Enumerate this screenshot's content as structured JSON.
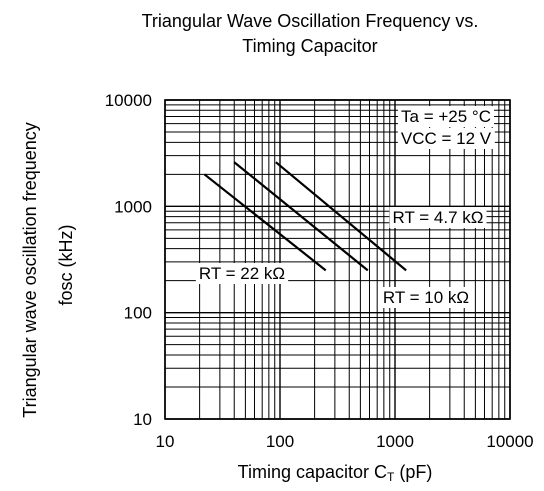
{
  "chart_data": {
    "type": "line",
    "title_line1": "Triangular Wave Oscillation Frequency vs.",
    "title_line2": "Timing Capacitor",
    "xlabel_main": "Timing capacitor C",
    "xlabel_sub": "T",
    "xlabel_unit": " (pF)",
    "ylabel_line1": "Triangular wave oscillation frequency",
    "ylabel_line2": "fosc (kHz)",
    "x_scale": "log",
    "y_scale": "log",
    "xlim": [
      10,
      10000
    ],
    "ylim": [
      10,
      10000
    ],
    "grid": true,
    "x_ticks": [
      10,
      100,
      1000,
      10000
    ],
    "x_tick_labels": [
      "10",
      "100",
      "1000",
      "10000"
    ],
    "y_ticks": [
      10,
      100,
      1000,
      10000
    ],
    "y_tick_labels": [
      "10",
      "100",
      "1000",
      "10000"
    ],
    "conditions": [
      "Ta = +25 °C",
      "VCC = 12 V"
    ],
    "series": [
      {
        "name": "RT = 22 kΩ",
        "x": [
          22,
          250
        ],
        "y": [
          2000,
          250
        ]
      },
      {
        "name": "RT = 10 kΩ",
        "x": [
          40,
          580
        ],
        "y": [
          2600,
          250
        ]
      },
      {
        "name": "RT = 4.7 kΩ",
        "x": [
          92,
          1250
        ],
        "y": [
          2600,
          250
        ]
      }
    ]
  }
}
